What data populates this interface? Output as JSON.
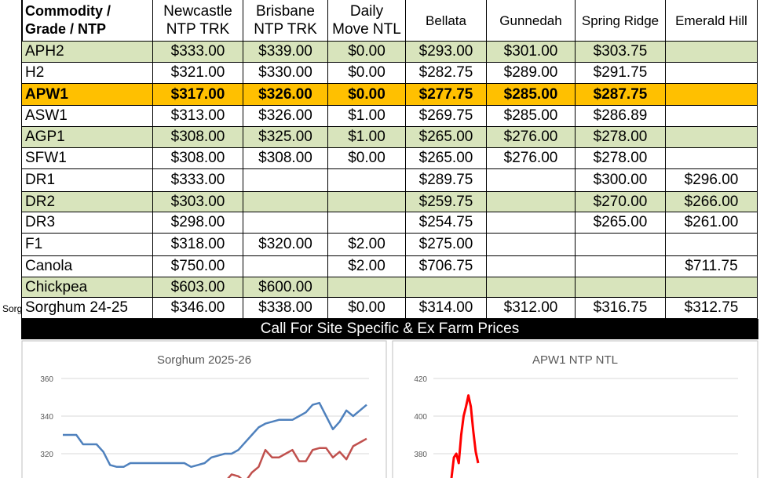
{
  "table": {
    "header": [
      [
        "Commodity /",
        "Grade / NTP"
      ],
      [
        "Newcastle",
        "NTP TRK"
      ],
      [
        "Brisbane",
        "NTP TRK"
      ],
      [
        "Daily",
        "Move NTL"
      ],
      [
        "Bellata"
      ],
      [
        "Gunnedah"
      ],
      [
        "Spring Ridge"
      ],
      [
        "Emerald Hill"
      ]
    ],
    "rows": [
      [
        "APH2",
        "$333.00",
        "$339.00",
        "$0.00",
        "$293.00",
        "$301.00",
        "$303.75",
        null
      ],
      [
        "H2",
        "$321.00",
        "$330.00",
        "$0.00",
        "$282.75",
        "$289.00",
        "$291.75",
        null
      ],
      [
        "APW1",
        "$317.00",
        "$326.00",
        "$0.00",
        "$277.75",
        "$285.00",
        "$287.75",
        null
      ],
      [
        "ASW1",
        "$313.00",
        "$326.00",
        "$1.00",
        "$269.75",
        "$285.00",
        "$286.89",
        null
      ],
      [
        "AGP1",
        "$308.00",
        "$325.00",
        "$1.00",
        "$265.00",
        "$276.00",
        "$278.00",
        null
      ],
      [
        "SFW1",
        "$308.00",
        "$308.00",
        "$0.00",
        "$265.00",
        "$276.00",
        "$278.00",
        null
      ],
      [
        "DR1",
        "$333.00",
        null,
        null,
        "$289.75",
        null,
        "$300.00",
        "$296.00"
      ],
      [
        "DR2",
        "$303.00",
        null,
        null,
        "$259.75",
        null,
        "$270.00",
        "$266.00"
      ],
      [
        "DR3",
        "$298.00",
        null,
        null,
        "$254.75",
        null,
        "$265.00",
        "$261.00"
      ],
      [
        "F1",
        "$318.00",
        "$320.00",
        "$2.00",
        "$275.00",
        null,
        null,
        null
      ],
      [
        "Canola",
        "$750.00",
        null,
        "$2.00",
        "$706.75",
        null,
        null,
        "$711.75"
      ],
      [
        "Chickpea",
        "$603.00",
        "$600.00",
        null,
        null,
        null,
        null,
        null
      ],
      [
        "Sorghum 24-25",
        "$346.00",
        "$338.00",
        "$0.00",
        "$314.00",
        "$312.00",
        "$316.75",
        "$312.75"
      ]
    ]
  },
  "stray_label": "Sorg",
  "banner": "Call For Site Specific & Ex Farm Prices",
  "charts": [
    {
      "type": "line",
      "title": "Sorghum 2025-26",
      "ylim": [
        300,
        370
      ],
      "yticks": [
        320,
        340,
        360
      ],
      "grid": true,
      "series": [
        {
          "color": "#4f81bd",
          "values": [
            330,
            330,
            330,
            325,
            325,
            325,
            321,
            314,
            313,
            313,
            315,
            315,
            315,
            315,
            315,
            315,
            315,
            315,
            315,
            313,
            314,
            315,
            318,
            319,
            320,
            320,
            322,
            326,
            330,
            334,
            336,
            337,
            338,
            338,
            338,
            340,
            342,
            346,
            347,
            340,
            333,
            337,
            343,
            340,
            343,
            346
          ]
        },
        {
          "color": "#c0504d",
          "values": [
            null,
            null,
            null,
            null,
            null,
            null,
            null,
            null,
            null,
            null,
            null,
            null,
            null,
            null,
            null,
            null,
            null,
            null,
            null,
            null,
            null,
            null,
            null,
            null,
            305,
            309,
            308,
            305,
            310,
            313,
            322,
            318,
            318,
            320,
            322,
            316,
            316,
            322,
            323,
            323,
            318,
            321,
            317,
            324,
            326,
            328
          ]
        }
      ]
    },
    {
      "type": "line",
      "title": "APW1 NTP NTL",
      "ylim": [
        360,
        430
      ],
      "yticks": [
        380,
        400,
        420
      ],
      "grid": true,
      "series": [
        {
          "color": "#ff0000",
          "values": [
            367,
            378,
            380,
            375,
            390,
            400,
            405,
            411,
            405,
            392,
            381,
            375
          ]
        }
      ]
    }
  ]
}
